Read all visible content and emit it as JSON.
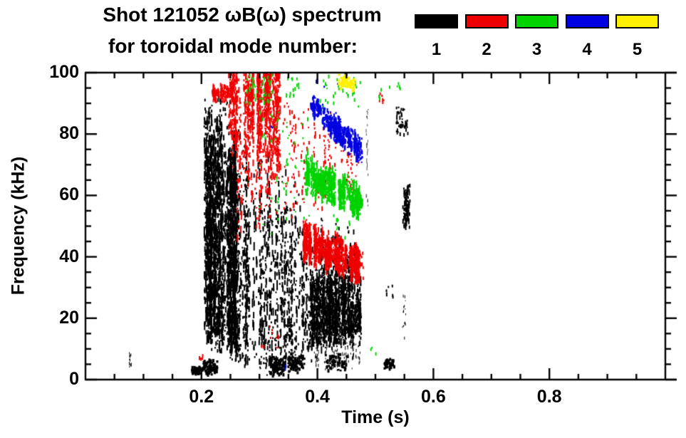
{
  "header": {
    "title": "Shot 121052 ωB(ω) spectrum",
    "subtitle": "for toroidal mode number:"
  },
  "chart_data": {
    "type": "scatter",
    "title": "Shot 121052 ωB(ω) spectrum",
    "subtitle": "for toroidal mode number:",
    "xlabel": "Time (s)",
    "ylabel": "Frequency (kHz)",
    "xlim": [
      0,
      1.0
    ],
    "ylim": [
      0,
      100
    ],
    "x_major_ticks": [
      0.2,
      0.4,
      0.6,
      0.8
    ],
    "x_major_labels": [
      "0.2",
      "0.4",
      "0.6",
      "0.8"
    ],
    "x_minor_step": 0.05,
    "y_major_ticks": [
      0,
      20,
      40,
      60,
      80,
      100
    ],
    "y_major_labels": [
      "0",
      "20",
      "40",
      "60",
      "80",
      "100"
    ],
    "y_minor_step": 5,
    "grid": false,
    "legend_position": "top-right",
    "legend": [
      {
        "label": "1",
        "color": "#000000"
      },
      {
        "label": "2",
        "color": "#ee0000"
      },
      {
        "label": "3",
        "color": "#00d300"
      },
      {
        "label": "4",
        "color": "#0000e0"
      },
      {
        "label": "5",
        "color": "#fff000"
      }
    ],
    "series": [
      {
        "name": "toroidal mode n=1",
        "mode": 1,
        "color": "#000000",
        "bands": [
          {
            "kind": "streaks",
            "t": [
              0.205,
              0.262
            ],
            "f_bot": [
              15,
              10
            ],
            "f_top": [
              86,
              73
            ],
            "cols": 100,
            "pts": 24,
            "seg": 16,
            "size": 2,
            "bias": 1.1,
            "jt": 8,
            "jb": 5
          },
          {
            "kind": "streaks",
            "t": [
              0.262,
              0.335
            ],
            "f_bot": [
              7,
              5
            ],
            "f_top": [
              74,
              58
            ],
            "cols": 48,
            "pts": 13,
            "seg": 14,
            "size": 2,
            "bias": 1.1,
            "jt": 13,
            "jb": 5
          },
          {
            "kind": "streaks",
            "t": [
              0.335,
              0.392
            ],
            "f_bot": [
              4,
              8
            ],
            "f_top": [
              58,
              48
            ],
            "cols": 40,
            "pts": 11,
            "seg": 12,
            "size": 2,
            "bias": 1.05,
            "jt": 12,
            "jb": 4
          },
          {
            "kind": "streaks",
            "t": [
              0.385,
              0.473
            ],
            "f_bot": [
              12,
              13
            ],
            "f_top": [
              33,
              29
            ],
            "cols": 95,
            "pts": 18,
            "seg": 10,
            "size": 2,
            "bias": 1,
            "jt": 6,
            "jb": 3
          },
          {
            "kind": "streaks",
            "t": [
              0.4,
              0.468
            ],
            "f_bot": [
              30,
              28
            ],
            "f_top": [
              52,
              42
            ],
            "cols": 26,
            "pts": 7,
            "seg": 9,
            "size": 2,
            "bias": 1,
            "jt": 6,
            "jb": 2
          },
          {
            "kind": "streaks",
            "t": [
              0.39,
              0.472
            ],
            "f_bot": [
              3,
              4
            ],
            "f_top": [
              12,
              12
            ],
            "cols": 24,
            "pts": 5,
            "seg": 6,
            "size": 1,
            "bias": 1,
            "jt": 2,
            "jb": 1
          },
          {
            "kind": "blob",
            "t": [
              0.183,
              0.203
            ],
            "f": [
              1.5,
              4.5
            ],
            "n": 60,
            "size": 3
          },
          {
            "kind": "blob",
            "t": [
              0.204,
              0.228
            ],
            "f": [
              1.5,
              7
            ],
            "n": 95,
            "size": 3
          },
          {
            "kind": "blob",
            "t": [
              0.318,
              0.345
            ],
            "f": [
              1,
              8
            ],
            "n": 85,
            "size": 3
          },
          {
            "kind": "blob",
            "t": [
              0.35,
              0.378
            ],
            "f": [
              2,
              9
            ],
            "n": 70,
            "size": 3
          },
          {
            "kind": "blob",
            "t": [
              0.415,
              0.452
            ],
            "f": [
              2,
              9
            ],
            "n": 55,
            "size": 3
          },
          {
            "kind": "streaks",
            "t": [
              0.0755,
              0.077
            ],
            "f_bot": [
              4,
              4
            ],
            "f_top": [
              9,
              9
            ],
            "cols": 2,
            "pts": 7,
            "seg": 6,
            "size": 1,
            "bias": 1,
            "jt": 0,
            "jb": 0
          },
          {
            "kind": "blob",
            "t": [
              0.516,
              0.532
            ],
            "f": [
              3.5,
              7
            ],
            "n": 40,
            "size": 3
          },
          {
            "kind": "streaks",
            "t": [
              0.545,
              0.558
            ],
            "f_bot": [
              49,
              51
            ],
            "f_top": [
              62,
              64
            ],
            "cols": 9,
            "pts": 12,
            "seg": 10,
            "size": 2,
            "bias": 1,
            "jt": 3,
            "jb": 2
          },
          {
            "kind": "specks",
            "t": [
              0.535,
              0.557
            ],
            "f": [
              80,
              89
            ],
            "n": 45,
            "size": 2
          },
          {
            "kind": "specks",
            "t": [
              0.546,
              0.552
            ],
            "f": [
              12,
              30
            ],
            "n": 16,
            "size": 1
          },
          {
            "kind": "streaks",
            "t": [
              0.4845,
              0.486
            ],
            "f_bot": [
              56,
              56
            ],
            "f_top": [
              88,
              88
            ],
            "cols": 2,
            "pts": 12,
            "seg": 8,
            "size": 1,
            "bias": 1,
            "jt": 0,
            "jb": 0,
            "color": "#555555"
          },
          {
            "kind": "specks",
            "t": [
              0.205,
              0.25
            ],
            "f": [
              80,
              93
            ],
            "n": 40,
            "size": 2
          },
          {
            "kind": "specks",
            "t": [
              0.515,
              0.53
            ],
            "f": [
              27,
              31
            ],
            "n": 6,
            "size": 2
          }
        ]
      },
      {
        "name": "toroidal mode n=2",
        "mode": 2,
        "color": "#ee0000",
        "bands": [
          {
            "kind": "streaks",
            "t": [
              0.218,
              0.263
            ],
            "f_bot": [
              91.5,
              91.5
            ],
            "f_top": [
              95.5,
              95
            ],
            "cols": 28,
            "pts": 7,
            "seg": 6,
            "size": 2,
            "bias": 1,
            "jt": 1.5,
            "jb": 1.5
          },
          {
            "kind": "streaks",
            "t": [
              0.245,
              0.335
            ],
            "f_bot": [
              76,
              72
            ],
            "f_top": [
              100,
              100
            ],
            "cols": 65,
            "pts": 15,
            "seg": 13,
            "size": 2,
            "bias": 0.9,
            "jt": 2,
            "jb": 10
          },
          {
            "kind": "streaks",
            "t": [
              0.26,
              0.325
            ],
            "f_bot": [
              52,
              58
            ],
            "f_top": [
              76,
              72
            ],
            "cols": 22,
            "pts": 6,
            "seg": 10,
            "size": 2,
            "bias": 1,
            "jt": 4,
            "jb": 8
          },
          {
            "kind": "streaks",
            "t": [
              0.33,
              0.425
            ],
            "f_bot": [
              55,
              58
            ],
            "f_top": [
              92,
              85
            ],
            "cols": 34,
            "pts": 4,
            "seg": 7,
            "size": 2,
            "bias": 1,
            "jt": 4,
            "jb": 4
          },
          {
            "kind": "streaks",
            "t": [
              0.425,
              0.478
            ],
            "f_bot": [
              58,
              60
            ],
            "f_top": [
              82,
              72
            ],
            "cols": 16,
            "pts": 3,
            "seg": 6,
            "size": 2,
            "bias": 1,
            "jt": 3,
            "jb": 3
          },
          {
            "kind": "streaks",
            "t": [
              0.376,
              0.473
            ],
            "f_bot": [
              40,
              33
            ],
            "f_top": [
              50,
              41
            ],
            "cols": 85,
            "pts": 16,
            "seg": 9,
            "size": 2,
            "bias": 1,
            "jt": 3,
            "jb": 3
          },
          {
            "kind": "specks",
            "t": [
              0.455,
              0.478
            ],
            "f": [
              32,
              42
            ],
            "n": 30,
            "size": 2
          },
          {
            "kind": "specks",
            "t": [
              0.3,
              0.335
            ],
            "f": [
              10,
              18
            ],
            "n": 10,
            "size": 2
          },
          {
            "kind": "specks",
            "t": [
              0.194,
              0.201
            ],
            "f": [
              7,
              8.5
            ],
            "n": 5,
            "size": 2
          },
          {
            "kind": "specks",
            "t": [
              0.505,
              0.514
            ],
            "f": [
              88,
              94
            ],
            "n": 6,
            "size": 2
          }
        ]
      },
      {
        "name": "toroidal mode n=3",
        "mode": 3,
        "color": "#00d300",
        "bands": [
          {
            "kind": "streaks",
            "t": [
              0.378,
              0.475
            ],
            "f_bot": [
              63,
              54
            ],
            "f_top": [
              72,
              61
            ],
            "cols": 80,
            "pts": 15,
            "seg": 9,
            "size": 2,
            "bias": 1,
            "jt": 3,
            "jb": 3
          },
          {
            "kind": "specks",
            "t": [
              0.275,
              0.322
            ],
            "f": [
              90,
              100
            ],
            "n": 40,
            "size": 2
          },
          {
            "kind": "streaks",
            "t": [
              0.3,
              0.4
            ],
            "f_bot": [
              45,
              55
            ],
            "f_top": [
              88,
              85
            ],
            "cols": 20,
            "pts": 3,
            "seg": 7,
            "size": 2,
            "bias": 1,
            "jt": 0,
            "jb": 0
          },
          {
            "kind": "specks",
            "t": [
              0.345,
              0.368
            ],
            "f": [
              92,
              99
            ],
            "n": 14,
            "size": 2
          },
          {
            "kind": "specks",
            "t": [
              0.4,
              0.475
            ],
            "f": [
              88,
              100
            ],
            "n": 35,
            "size": 2
          },
          {
            "kind": "specks",
            "t": [
              0.5,
              0.56
            ],
            "f": [
              92,
              99
            ],
            "n": 8,
            "size": 2
          },
          {
            "kind": "specks",
            "t": [
              0.488,
              0.5
            ],
            "f": [
              8,
              11
            ],
            "n": 3,
            "size": 2
          },
          {
            "kind": "specks",
            "t": [
              0.42,
              0.465
            ],
            "f": [
              46,
              54
            ],
            "n": 10,
            "size": 2
          }
        ]
      },
      {
        "name": "toroidal mode n=4",
        "mode": 4,
        "color": "#0000e0",
        "bands": [
          {
            "kind": "streaks",
            "t": [
              0.383,
              0.475
            ],
            "f_bot": [
              88,
              71
            ],
            "f_top": [
              93,
              77
            ],
            "cols": 60,
            "pts": 12,
            "seg": 8,
            "size": 2,
            "bias": 1,
            "jt": 2,
            "jb": 2
          },
          {
            "kind": "specks",
            "t": [
              0.39,
              0.455
            ],
            "f": [
              95,
              100
            ],
            "n": 8,
            "size": 2
          },
          {
            "kind": "specks",
            "t": [
              0.318,
              0.323
            ],
            "f": [
              81,
              83
            ],
            "n": 2,
            "size": 2
          },
          {
            "kind": "specks",
            "t": [
              0.34,
              0.346
            ],
            "f": [
              3,
              6
            ],
            "n": 2,
            "size": 2
          }
        ]
      },
      {
        "name": "toroidal mode n=5",
        "mode": 5,
        "color": "#fff000",
        "bands": [
          {
            "kind": "blob",
            "t": [
              0.437,
              0.453
            ],
            "f": [
              95,
              100
            ],
            "n": 45,
            "size": 3
          },
          {
            "kind": "blob",
            "t": [
              0.452,
              0.465
            ],
            "f": [
              93,
              99
            ],
            "n": 28,
            "size": 3
          }
        ]
      }
    ]
  }
}
